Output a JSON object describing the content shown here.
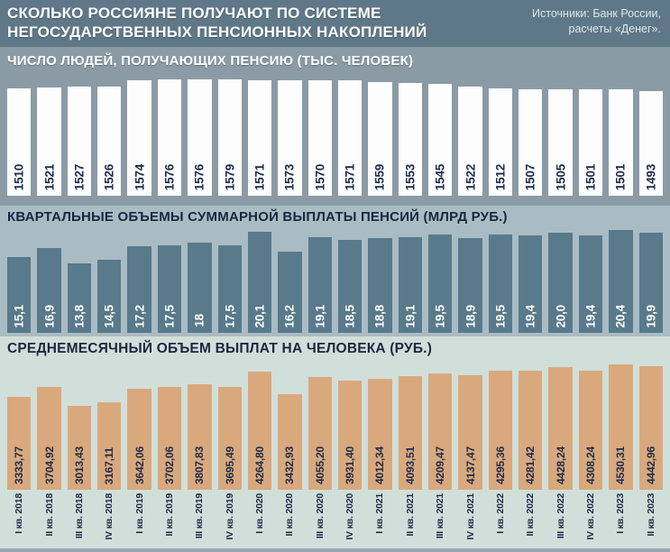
{
  "header": {
    "title_line1": "СКОЛЬКО РОССИЯНЕ ПОЛУЧАЮТ ПО СИСТЕМЕ",
    "title_line2": "НЕГОСУДАРСТВЕННЫХ ПЕНСИОННЫХ НАКОПЛЕНИЙ",
    "source_line1": "Источники: Банк России,",
    "source_line2": "расчеты «Денег»."
  },
  "colors": {
    "band-top-bg": "#5f7888",
    "title-text": "#ffffff",
    "source-text": "#dde7eb",
    "sec1-bg": "#8a9ba6",
    "sec1-header-text": "#ffffff",
    "bar1-fill": "#fdfdfd",
    "bar1-text": "#1c2b4d",
    "sec2-bg": "#a9bcc3",
    "sec2-header-text": "#1a2740",
    "bar2-fill": "#587a8b",
    "bar2-text": "#ffffff",
    "sec3-bg": "#d1dfda",
    "sec3-header-text": "#1a2740",
    "bar3-fill": "#d9a97d",
    "bar3-text": "#1c2b4d",
    "xlabel-text": "#1a2740",
    "bottom-strip": "#97a8b1"
  },
  "chart_data": [
    {
      "type": "bar",
      "title": "ЧИСЛО ЛЮДЕЙ, ПОЛУЧАЮЩИХ ПЕНСИЮ (ТЫС. ЧЕЛОВЕК)",
      "ylabel": "тыс. человек",
      "categories": [
        "I кв. 2018",
        "II кв. 2018",
        "III кв. 2018",
        "IV кв. 2018",
        "I кв. 2019",
        "II кв. 2019",
        "III кв. 2019",
        "IV кв. 2019",
        "I кв. 2020",
        "II кв. 2020",
        "III кв. 2020",
        "IV кв. 2020",
        "I кв. 2021",
        "II кв. 2021",
        "III кв. 2021",
        "IV кв. 2021",
        "I кв. 2022",
        "II кв. 2022",
        "III кв. 2022",
        "IV кв. 2022",
        "I кв. 2023",
        "II кв. 2023"
      ],
      "values": [
        1510,
        1521,
        1527,
        1526,
        1574,
        1576,
        1576,
        1579,
        1571,
        1573,
        1570,
        1571,
        1559,
        1553,
        1545,
        1522,
        1512,
        1507,
        1505,
        1501,
        1501,
        1493
      ],
      "values_display": [
        "1510",
        "1521",
        "1527",
        "1526",
        "1574",
        "1576",
        "1576",
        "1579",
        "1571",
        "1573",
        "1570",
        "1571",
        "1559",
        "1553",
        "1545",
        "1522",
        "1512",
        "1507",
        "1505",
        "1501",
        "1501",
        "1493"
      ],
      "ylim": [
        700,
        1620
      ],
      "legend": "none",
      "grid": false
    },
    {
      "type": "bar",
      "title": "КВАРТАЛЬНЫЕ ОБЪЕМЫ СУММАРНОЙ ВЫПЛАТЫ ПЕНСИЙ (МЛРД РУБ.)",
      "ylabel": "млрд руб.",
      "categories": [
        "I кв. 2018",
        "II кв. 2018",
        "III кв. 2018",
        "IV кв. 2018",
        "I кв. 2019",
        "II кв. 2019",
        "III кв. 2019",
        "IV кв. 2019",
        "I кв. 2020",
        "II кв. 2020",
        "III кв. 2020",
        "IV кв. 2020",
        "I кв. 2021",
        "II кв. 2021",
        "III кв. 2021",
        "IV кв. 2021",
        "I кв. 2022",
        "II кв. 2022",
        "III кв. 2022",
        "IV кв. 2022",
        "I кв. 2023",
        "II кв. 2023"
      ],
      "values": [
        15.1,
        16.9,
        13.8,
        14.5,
        17.2,
        17.5,
        18,
        17.5,
        20.1,
        16.2,
        19.1,
        18.5,
        18.8,
        19.1,
        19.5,
        18.9,
        19.5,
        19.4,
        20.0,
        19.4,
        20.4,
        19.9
      ],
      "values_display": [
        "15,1",
        "16,9",
        "13,8",
        "14,5",
        "17,2",
        "17,5",
        "18",
        "17,5",
        "20,1",
        "16,2",
        "19,1",
        "18,5",
        "18,8",
        "19,1",
        "19,5",
        "18,9",
        "19,5",
        "19,4",
        "20,0",
        "19,4",
        "20,4",
        "19,9"
      ],
      "ylim": [
        0,
        21
      ],
      "legend": "none",
      "grid": false
    },
    {
      "type": "bar",
      "title": "СРЕДНЕМЕСЯЧНЫЙ ОБЪЕМ ВЫПЛАТ НА ЧЕЛОВЕКА (РУБ.)",
      "ylabel": "руб.",
      "categories": [
        "I кв. 2018",
        "II кв. 2018",
        "III кв. 2018",
        "IV кв. 2018",
        "I кв. 2019",
        "II кв. 2019",
        "III кв. 2019",
        "IV кв. 2019",
        "I кв. 2020",
        "II кв. 2020",
        "III кв. 2020",
        "IV кв. 2020",
        "I кв. 2021",
        "II кв. 2021",
        "III кв. 2021",
        "IV кв. 2021",
        "I кв. 2022",
        "II кв. 2022",
        "III кв. 2022",
        "IV кв. 2022",
        "I кв. 2023",
        "II кв. 2023"
      ],
      "values": [
        3333.77,
        3704.92,
        3013.43,
        3167.11,
        3642.06,
        3702.06,
        3807.83,
        3695.49,
        4264.8,
        3432.93,
        4055.2,
        3931.4,
        4012.34,
        4093.51,
        4209.47,
        4137.47,
        4295.36,
        4281.42,
        4428.24,
        4308.24,
        4530.31,
        4442.96
      ],
      "values_display": [
        "3333,77",
        "3704,92",
        "3013,43",
        "3167,11",
        "3642,06",
        "3702,06",
        "3807,83",
        "3695,49",
        "4264,80",
        "3432,93",
        "4055,20",
        "3931,40",
        "4012,34",
        "4093,51",
        "4209,47",
        "4137,47",
        "4295,36",
        "4281,42",
        "4428,24",
        "4308,24",
        "4530,31",
        "4442,96"
      ],
      "ylim": [
        0,
        4650
      ],
      "legend": "none",
      "grid": false
    }
  ]
}
